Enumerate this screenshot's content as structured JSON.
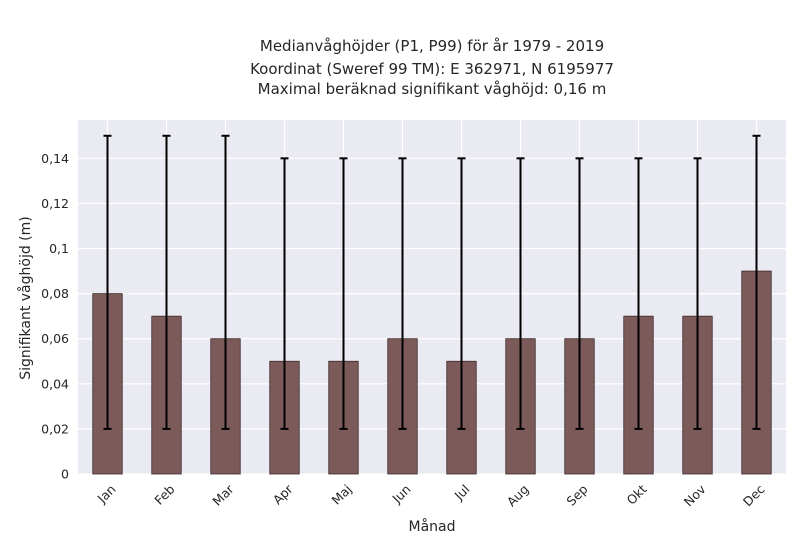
{
  "chart_data": {
    "type": "bar",
    "title_lines": [
      "Medianvåghöjder (P1, P99) för år 1979 - 2019",
      "Koordinat (Sweref 99 TM): E 362971, N 6195977",
      "Maximal beräknad signifikant våghöjd: 0,16 m"
    ],
    "xlabel": "Månad",
    "ylabel": "Signifikant våghöjd (m)",
    "categories": [
      "Jan",
      "Feb",
      "Mar",
      "Apr",
      "Maj",
      "Jun",
      "Jul",
      "Aug",
      "Sep",
      "Okt",
      "Nov",
      "Dec"
    ],
    "series": [
      {
        "values": [
          0.08,
          0.07,
          0.06,
          0.05,
          0.05,
          0.06,
          0.05,
          0.06,
          0.06,
          0.07,
          0.07,
          0.09
        ],
        "error_low": [
          0.02,
          0.02,
          0.02,
          0.02,
          0.02,
          0.02,
          0.02,
          0.02,
          0.02,
          0.02,
          0.02,
          0.02
        ],
        "error_high": [
          0.15,
          0.15,
          0.15,
          0.14,
          0.14,
          0.14,
          0.14,
          0.14,
          0.14,
          0.14,
          0.14,
          0.15
        ]
      }
    ],
    "ylim": [
      0,
      0.157
    ],
    "yticks": [
      0,
      0.02,
      0.04,
      0.06,
      0.08,
      0.1,
      0.12,
      0.14
    ],
    "ytick_labels": [
      "0",
      "0,02",
      "0,04",
      "0,06",
      "0,08",
      "0,1",
      "0,12",
      "0,14"
    ],
    "grid": true,
    "colors": {
      "bar": "#7d5a5a",
      "bar_edge": "#3a2a2a",
      "plot_background": "#eaeaf2",
      "grid": "#ffffff",
      "error_bar": "#000000"
    }
  }
}
